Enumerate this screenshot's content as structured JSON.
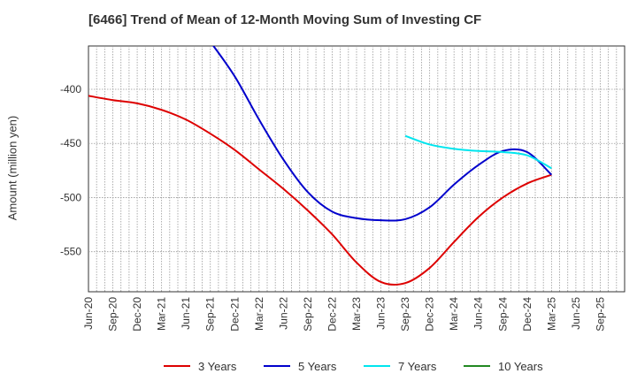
{
  "chart_data": {
    "type": "line",
    "title": "[6466]  Trend of Mean of 12-Month Moving Sum of Investing CF",
    "xlabel": "",
    "ylabel": "Amount (million yen)",
    "ylim": [
      -587,
      -360
    ],
    "yticks": [
      -400,
      -450,
      -500,
      -550
    ],
    "categories": [
      "Jun-20",
      "Sep-20",
      "Dec-20",
      "Mar-21",
      "Jun-21",
      "Sep-21",
      "Dec-21",
      "Mar-22",
      "Jun-22",
      "Sep-22",
      "Dec-22",
      "Mar-23",
      "Jun-23",
      "Sep-23",
      "Dec-23",
      "Mar-24",
      "Jun-24",
      "Sep-24",
      "Dec-24",
      "Mar-25",
      "Jun-25",
      "Sep-25"
    ],
    "grid": true,
    "legend_position": "bottom",
    "series": [
      {
        "name": "3 Years",
        "color": "#dd0000",
        "values": [
          -406,
          -410,
          -413,
          -419,
          -428,
          -441,
          -456,
          -474,
          -492,
          -512,
          -534,
          -560,
          -578,
          -579,
          -565,
          -541,
          -518,
          -500,
          -487,
          -479,
          null,
          null
        ]
      },
      {
        "name": "5 Years",
        "color": "#0000cc",
        "values": [
          null,
          null,
          null,
          null,
          null,
          -356,
          -388,
          -428,
          -465,
          -495,
          -513,
          -519,
          -521,
          -520,
          -509,
          -488,
          -470,
          -457,
          -458,
          -479,
          null,
          null
        ]
      },
      {
        "name": "7 Years",
        "color": "#00e5ee",
        "values": [
          null,
          null,
          null,
          null,
          null,
          null,
          null,
          null,
          null,
          null,
          null,
          null,
          null,
          -443,
          -451,
          -455,
          -457,
          -458,
          -461,
          -473,
          null,
          null
        ]
      },
      {
        "name": "10 Years",
        "color": "#228822",
        "values": [
          null,
          null,
          null,
          null,
          null,
          null,
          null,
          null,
          null,
          null,
          null,
          null,
          null,
          null,
          null,
          null,
          null,
          null,
          null,
          null,
          null,
          null
        ]
      }
    ]
  }
}
